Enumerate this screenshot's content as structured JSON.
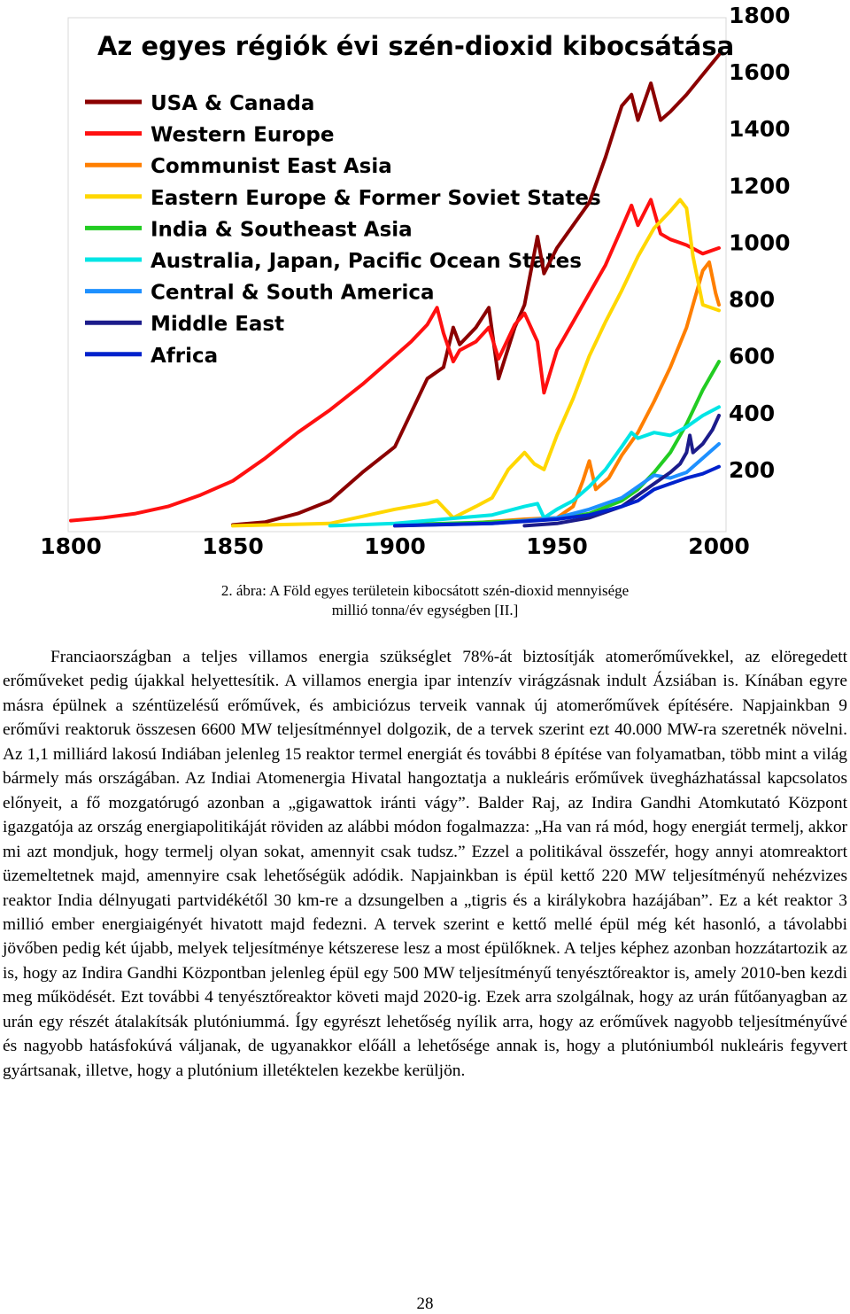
{
  "chart_data": {
    "type": "line",
    "title": "Az egyes régiók évi szén-dioxid kibocsátása",
    "x_ticks": [
      "1800",
      "1850",
      "1900",
      "1950",
      "2000"
    ],
    "y_ticks": [
      "200",
      "400",
      "600",
      "800",
      "1000",
      "1200",
      "1400",
      "1600",
      "1800"
    ],
    "xlim": [
      1800,
      2005
    ],
    "ylim": [
      0,
      1800
    ],
    "grid": false,
    "legend_position": "top-left",
    "series": [
      {
        "name": "USA & Canada",
        "color": "#8b0000",
        "points": [
          [
            1850,
            5
          ],
          [
            1860,
            15
          ],
          [
            1870,
            45
          ],
          [
            1880,
            90
          ],
          [
            1890,
            190
          ],
          [
            1900,
            280
          ],
          [
            1905,
            400
          ],
          [
            1910,
            520
          ],
          [
            1915,
            560
          ],
          [
            1918,
            700
          ],
          [
            1920,
            640
          ],
          [
            1925,
            700
          ],
          [
            1929,
            770
          ],
          [
            1932,
            520
          ],
          [
            1937,
            700
          ],
          [
            1940,
            780
          ],
          [
            1944,
            1020
          ],
          [
            1946,
            890
          ],
          [
            1950,
            980
          ],
          [
            1955,
            1060
          ],
          [
            1960,
            1140
          ],
          [
            1965,
            1300
          ],
          [
            1970,
            1480
          ],
          [
            1973,
            1520
          ],
          [
            1975,
            1430
          ],
          [
            1979,
            1560
          ],
          [
            1982,
            1430
          ],
          [
            1985,
            1460
          ],
          [
            1990,
            1520
          ],
          [
            1995,
            1590
          ],
          [
            2000,
            1660
          ]
        ]
      },
      {
        "name": "Western Europe",
        "color": "#ff1010",
        "points": [
          [
            1800,
            20
          ],
          [
            1810,
            30
          ],
          [
            1820,
            45
          ],
          [
            1830,
            70
          ],
          [
            1840,
            110
          ],
          [
            1850,
            160
          ],
          [
            1860,
            240
          ],
          [
            1870,
            330
          ],
          [
            1880,
            410
          ],
          [
            1890,
            500
          ],
          [
            1900,
            600
          ],
          [
            1905,
            650
          ],
          [
            1910,
            710
          ],
          [
            1913,
            770
          ],
          [
            1915,
            680
          ],
          [
            1918,
            580
          ],
          [
            1920,
            620
          ],
          [
            1925,
            650
          ],
          [
            1929,
            700
          ],
          [
            1932,
            590
          ],
          [
            1937,
            710
          ],
          [
            1940,
            750
          ],
          [
            1944,
            650
          ],
          [
            1946,
            470
          ],
          [
            1950,
            620
          ],
          [
            1955,
            720
          ],
          [
            1960,
            820
          ],
          [
            1965,
            920
          ],
          [
            1970,
            1050
          ],
          [
            1973,
            1130
          ],
          [
            1975,
            1060
          ],
          [
            1979,
            1150
          ],
          [
            1982,
            1030
          ],
          [
            1985,
            1010
          ],
          [
            1990,
            990
          ],
          [
            1995,
            960
          ],
          [
            2000,
            980
          ]
        ]
      },
      {
        "name": "Communist East Asia",
        "color": "#ff7f00",
        "points": [
          [
            1900,
            2
          ],
          [
            1920,
            8
          ],
          [
            1940,
            25
          ],
          [
            1950,
            30
          ],
          [
            1955,
            70
          ],
          [
            1958,
            160
          ],
          [
            1960,
            230
          ],
          [
            1962,
            130
          ],
          [
            1966,
            170
          ],
          [
            1970,
            250
          ],
          [
            1975,
            330
          ],
          [
            1980,
            440
          ],
          [
            1985,
            560
          ],
          [
            1990,
            700
          ],
          [
            1995,
            900
          ],
          [
            1997,
            930
          ],
          [
            1999,
            820
          ],
          [
            2000,
            780
          ]
        ]
      },
      {
        "name": "Eastern Europe & Former Soviet States",
        "color": "#ffd700",
        "points": [
          [
            1850,
            2
          ],
          [
            1880,
            10
          ],
          [
            1900,
            60
          ],
          [
            1910,
            80
          ],
          [
            1913,
            90
          ],
          [
            1918,
            30
          ],
          [
            1925,
            70
          ],
          [
            1930,
            100
          ],
          [
            1935,
            200
          ],
          [
            1940,
            260
          ],
          [
            1943,
            220
          ],
          [
            1946,
            200
          ],
          [
            1950,
            320
          ],
          [
            1955,
            450
          ],
          [
            1960,
            600
          ],
          [
            1965,
            720
          ],
          [
            1970,
            830
          ],
          [
            1975,
            950
          ],
          [
            1980,
            1050
          ],
          [
            1985,
            1110
          ],
          [
            1988,
            1150
          ],
          [
            1990,
            1120
          ],
          [
            1992,
            950
          ],
          [
            1995,
            780
          ],
          [
            2000,
            760
          ]
        ]
      },
      {
        "name": "India & Southeast Asia",
        "color": "#22cc22",
        "points": [
          [
            1900,
            5
          ],
          [
            1930,
            15
          ],
          [
            1950,
            25
          ],
          [
            1960,
            45
          ],
          [
            1970,
            90
          ],
          [
            1975,
            130
          ],
          [
            1980,
            190
          ],
          [
            1985,
            260
          ],
          [
            1990,
            360
          ],
          [
            1995,
            480
          ],
          [
            2000,
            580
          ]
        ]
      },
      {
        "name": "Australia, Japan, Pacific Ocean States",
        "color": "#00e5e5",
        "points": [
          [
            1880,
            2
          ],
          [
            1900,
            10
          ],
          [
            1920,
            30
          ],
          [
            1930,
            40
          ],
          [
            1940,
            70
          ],
          [
            1944,
            80
          ],
          [
            1946,
            30
          ],
          [
            1950,
            60
          ],
          [
            1955,
            90
          ],
          [
            1960,
            140
          ],
          [
            1965,
            200
          ],
          [
            1970,
            280
          ],
          [
            1973,
            330
          ],
          [
            1975,
            310
          ],
          [
            1980,
            330
          ],
          [
            1985,
            320
          ],
          [
            1990,
            350
          ],
          [
            1995,
            390
          ],
          [
            2000,
            420
          ]
        ]
      },
      {
        "name": "Central & South America",
        "color": "#1e90ff",
        "points": [
          [
            1900,
            3
          ],
          [
            1930,
            10
          ],
          [
            1950,
            30
          ],
          [
            1960,
            60
          ],
          [
            1970,
            100
          ],
          [
            1975,
            140
          ],
          [
            1980,
            180
          ],
          [
            1985,
            170
          ],
          [
            1990,
            190
          ],
          [
            1995,
            240
          ],
          [
            2000,
            290
          ]
        ]
      },
      {
        "name": "Middle East",
        "color": "#1c1c8b",
        "points": [
          [
            1940,
            2
          ],
          [
            1950,
            10
          ],
          [
            1960,
            30
          ],
          [
            1970,
            70
          ],
          [
            1975,
            110
          ],
          [
            1980,
            150
          ],
          [
            1985,
            190
          ],
          [
            1988,
            220
          ],
          [
            1990,
            260
          ],
          [
            1991,
            320
          ],
          [
            1992,
            260
          ],
          [
            1995,
            290
          ],
          [
            1998,
            340
          ],
          [
            2000,
            390
          ]
        ]
      },
      {
        "name": "Africa",
        "color": "#0022cc",
        "points": [
          [
            1900,
            2
          ],
          [
            1930,
            10
          ],
          [
            1950,
            25
          ],
          [
            1960,
            40
          ],
          [
            1970,
            70
          ],
          [
            1975,
            90
          ],
          [
            1980,
            130
          ],
          [
            1985,
            150
          ],
          [
            1990,
            170
          ],
          [
            1995,
            185
          ],
          [
            2000,
            210
          ]
        ]
      }
    ]
  },
  "caption": {
    "line1": "2. ábra: A Föld egyes területein kibocsátott szén-dioxid mennyisége",
    "line2": "millió tonna/év egységben [II.]"
  },
  "body": {
    "paragraph": "Franciaországban a teljes villamos energia szükséglet 78%-át biztosítják atomerőművekkel, az elöregedett erőműveket pedig újakkal helyettesítik. A villamos energia ipar intenzív virágzásnak indult Ázsiában is. Kínában egyre másra épülnek a széntüzelésű erőművek, és ambiciózus terveik vannak új atomerőművek építésére. Napjainkban 9 erőművi reaktoruk összesen 6600 MW teljesítménnyel dolgozik, de a tervek szerint ezt 40.000 MW-ra szeretnék növelni. Az 1,1 milliárd lakosú Indiában jelenleg 15 reaktor termel energiát és további 8 építése van folyamatban, több mint a világ bármely más országában. Az Indiai Atomenergia Hivatal hangoztatja a nukleáris erőművek üvegházhatással kapcsolatos előnyeit, a fő mozgatórugó azonban a „gigawattok iránti vágy”. Balder Raj, az Indira Gandhi Atomkutató Központ igazgatója az ország energiapolitikáját röviden az alábbi módon fogalmazza: „Ha van rá mód, hogy energiát termelj, akkor mi azt mondjuk, hogy termelj olyan sokat, amennyit csak tudsz.” Ezzel a politikával összefér, hogy annyi atomreaktort üzemeltetnek majd, amennyire csak lehetőségük adódik. Napjainkban is épül kettő 220 MW teljesítményű nehézvizes reaktor India délnyugati partvidékétől 30 km-re a dzsungelben a „tigris és a királykobra hazájában”. Ez a két reaktor 3 millió ember energiaigényét hivatott majd fedezni. A tervek szerint e kettő mellé épül még két hasonló, a távolabbi jövőben pedig két újabb, melyek teljesítménye kétszerese lesz a most épülőknek. A teljes képhez azonban hozzátartozik az is, hogy az Indira Gandhi Központban jelenleg épül egy 500 MW teljesítményű tenyésztőreaktor is, amely 2010-ben kezdi meg működését. Ezt további 4 tenyésztőreaktor követi majd 2020-ig. Ezek arra szolgálnak, hogy az urán fűtőanyagban az urán egy részét átalakítsák plutóniummá. Így egyrészt lehetőség nyílik arra, hogy az erőművek nagyobb teljesítményűvé és nagyobb hatásfokúvá váljanak, de ugyanakkor előáll a lehetősége annak is, hogy a plutóniumból nukleáris fegyvert gyártsanak, illetve, hogy a plutónium illetéktelen kezekbe kerüljön."
  },
  "page_number": "28"
}
